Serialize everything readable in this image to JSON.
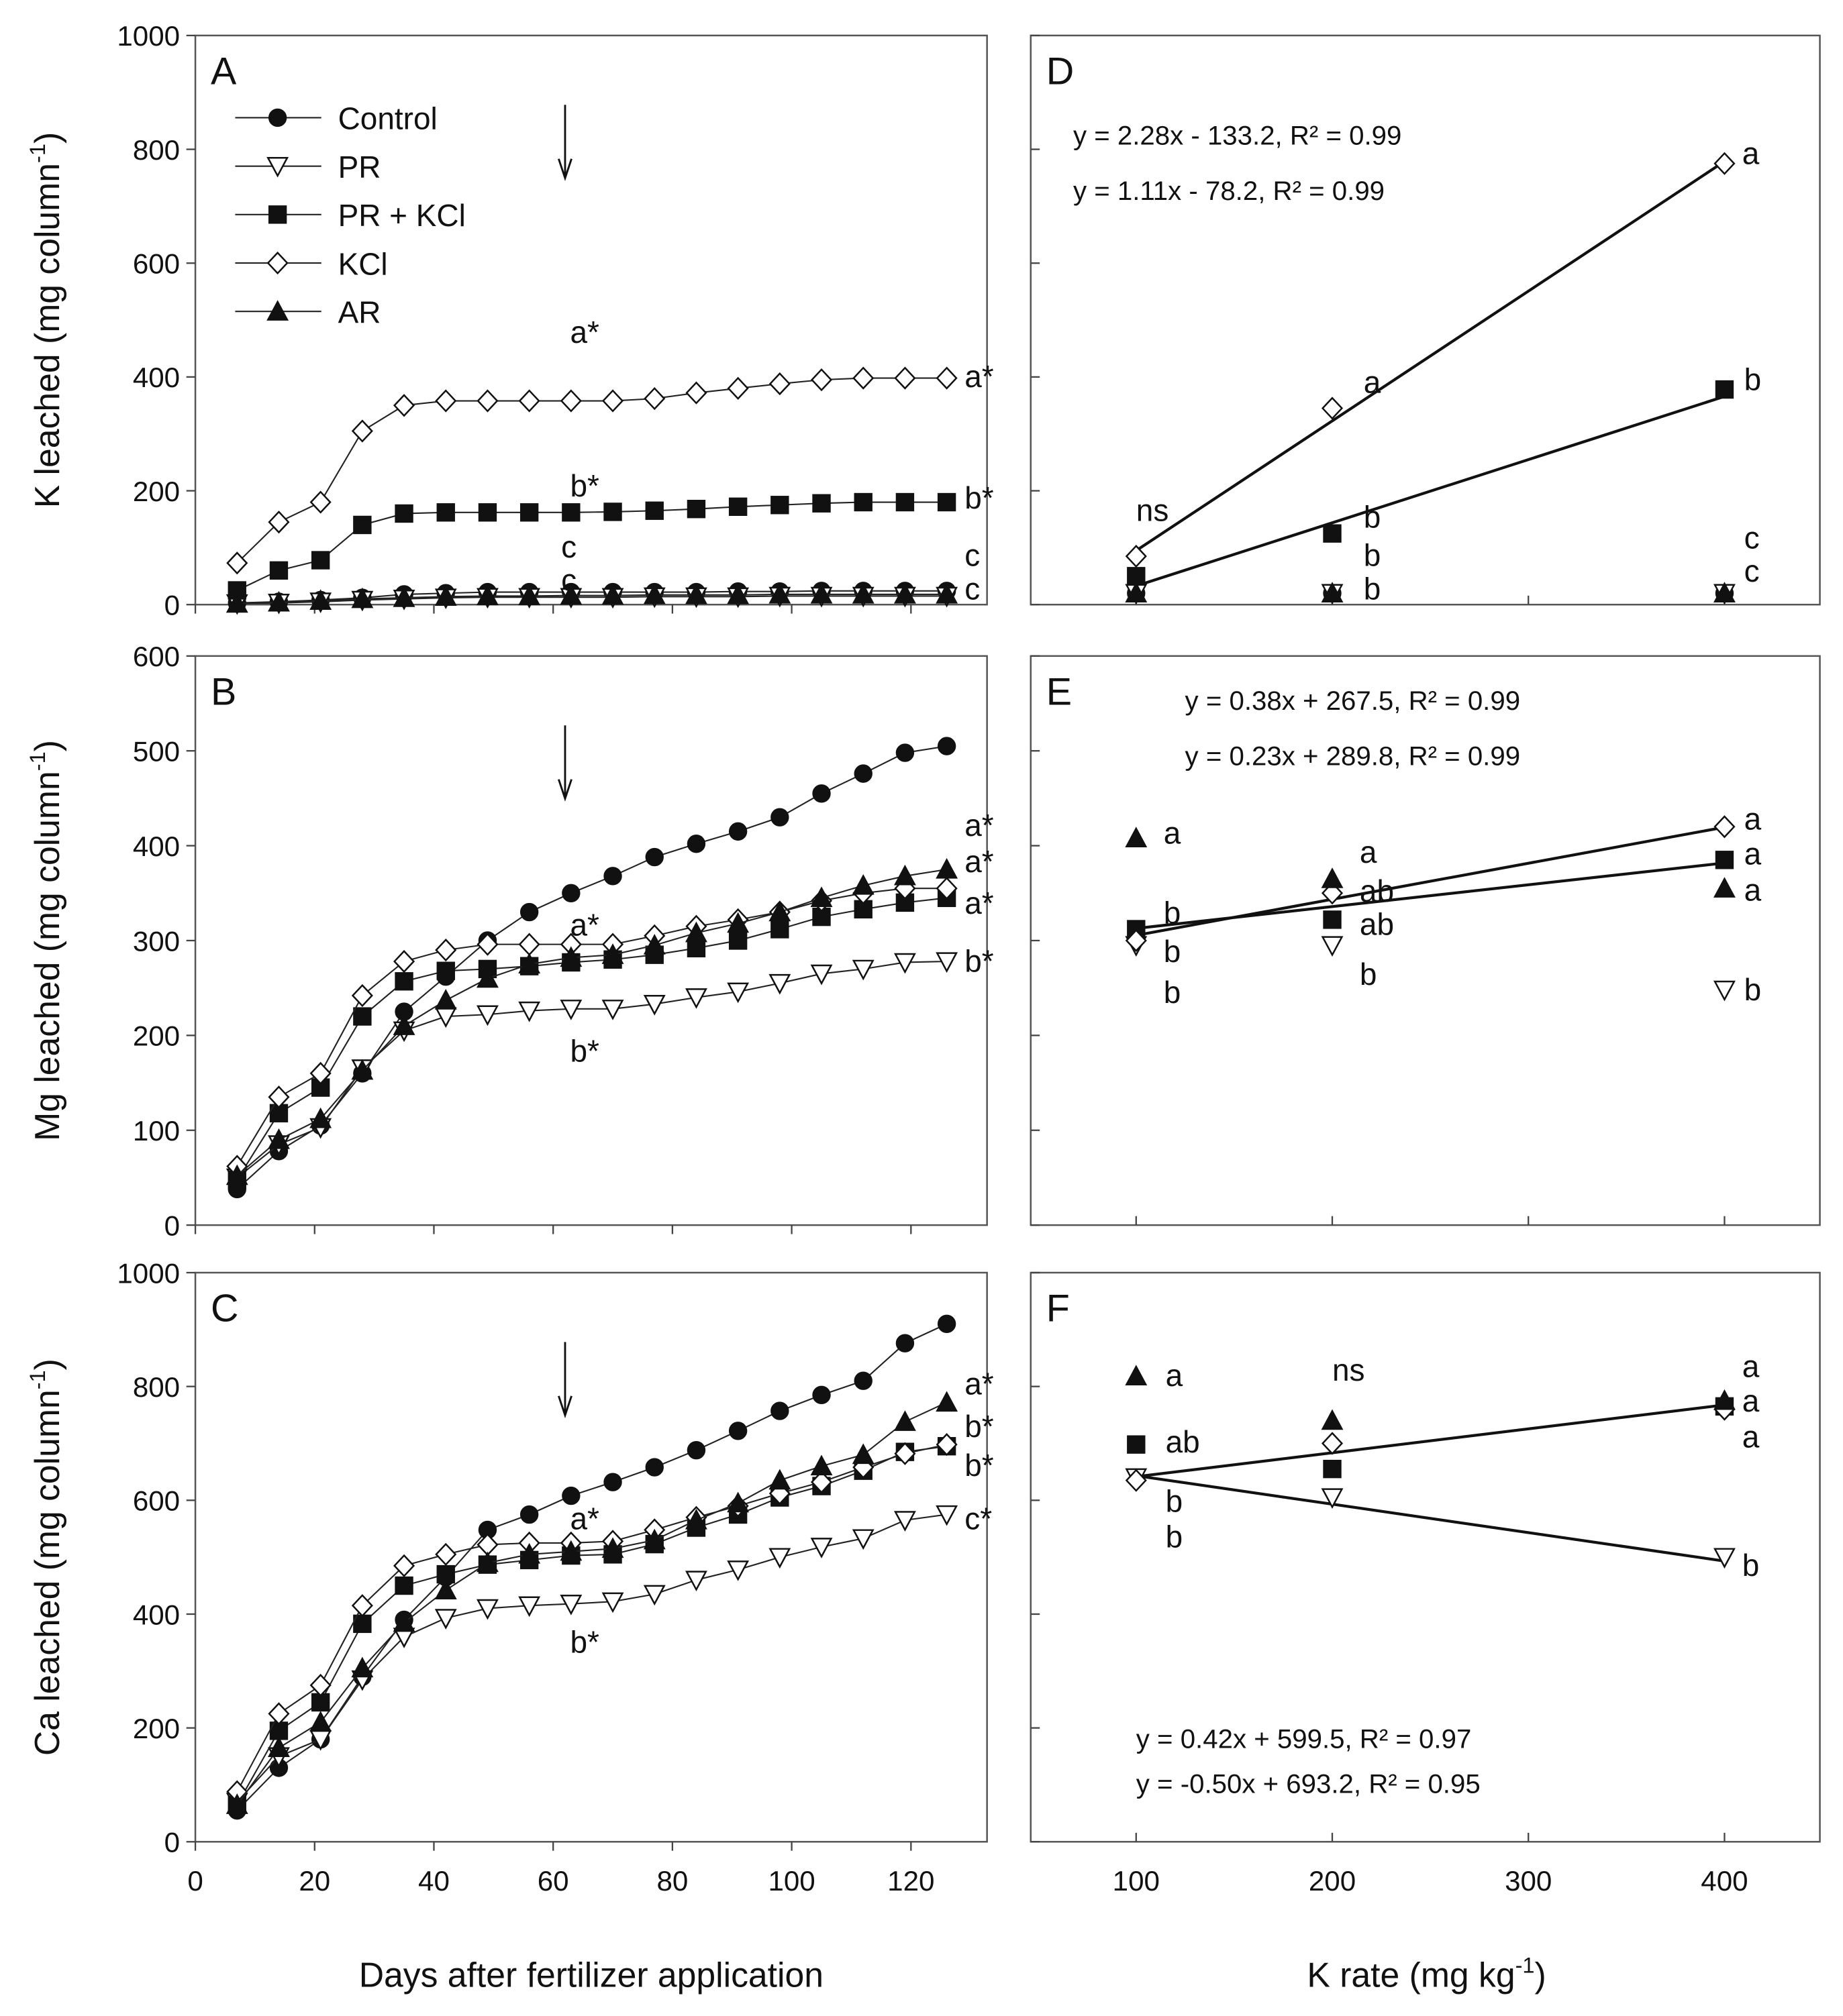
{
  "chart_data": [
    {
      "panel": "A",
      "type": "line",
      "ylabel": "K leached (mg column-1)",
      "ylim": [
        0,
        1000
      ],
      "yticks": [
        0,
        200,
        400,
        600,
        800,
        1000
      ],
      "xlim": [
        0,
        135
      ],
      "xticks": [
        0,
        20,
        40,
        60,
        80,
        100,
        120
      ],
      "x": [
        7,
        14,
        21,
        28,
        35,
        42,
        49,
        56,
        63,
        70,
        77,
        84,
        91,
        98,
        105,
        112,
        119,
        126
      ],
      "arrow_day": 62,
      "series": [
        {
          "name": "Control",
          "marker": "circle-filled",
          "values": [
            3,
            5,
            8,
            12,
            18,
            20,
            22,
            22,
            22,
            22,
            22,
            22,
            23,
            23,
            24,
            24,
            24,
            24
          ]
        },
        {
          "name": "PR",
          "marker": "triangle-down-open",
          "values": [
            2,
            3,
            5,
            8,
            10,
            12,
            13,
            13,
            13,
            13,
            14,
            14,
            14,
            15,
            15,
            15,
            15,
            15
          ]
        },
        {
          "name": "PR + KCl",
          "marker": "square-filled",
          "values": [
            25,
            60,
            78,
            140,
            160,
            162,
            162,
            162,
            162,
            163,
            165,
            168,
            172,
            175,
            178,
            180,
            180,
            180
          ]
        },
        {
          "name": "KCl",
          "marker": "diamond-open",
          "values": [
            73,
            145,
            180,
            305,
            350,
            358,
            358,
            358,
            358,
            358,
            362,
            372,
            380,
            388,
            395,
            398,
            398,
            398
          ]
        },
        {
          "name": "AR",
          "marker": "triangle-up-filled",
          "values": [
            2,
            4,
            7,
            10,
            12,
            14,
            15,
            15,
            16,
            16,
            17,
            17,
            17,
            18,
            18,
            18,
            18,
            18
          ]
        }
      ],
      "annotations": [
        {
          "text": "a*",
          "x": 65,
          "y": 478
        },
        {
          "text": "a*",
          "x": 129,
          "y": 400
        },
        {
          "text": "b*",
          "x": 65,
          "y": 208
        },
        {
          "text": "b*",
          "x": 129,
          "y": 187
        },
        {
          "text": "c",
          "x": 63.5,
          "y": 101
        },
        {
          "text": "c",
          "x": 63.5,
          "y": 61
        },
        {
          "text": "c",
          "x": 129,
          "y": 86
        },
        {
          "text": "c",
          "x": 129,
          "y": 29
        }
      ]
    },
    {
      "panel": "B",
      "type": "line",
      "ylabel": "Mg leached (mg column-1)",
      "ylim": [
        0,
        600
      ],
      "yticks": [
        0,
        100,
        200,
        300,
        400,
        500,
        600
      ],
      "xlim": [
        0,
        135
      ],
      "xticks": [
        0,
        20,
        40,
        60,
        80,
        100,
        120
      ],
      "x": [
        7,
        14,
        21,
        28,
        35,
        42,
        49,
        56,
        63,
        70,
        77,
        84,
        91,
        98,
        105,
        112,
        119,
        126
      ],
      "arrow_day": 62,
      "series": [
        {
          "name": "Control",
          "marker": "circle-filled",
          "values": [
            38,
            78,
            105,
            160,
            225,
            262,
            300,
            330,
            350,
            368,
            388,
            402,
            415,
            430,
            455,
            476,
            498,
            505
          ]
        },
        {
          "name": "PR",
          "marker": "triangle-down-open",
          "values": [
            50,
            85,
            103,
            165,
            205,
            220,
            222,
            226,
            228,
            228,
            233,
            240,
            246,
            255,
            265,
            270,
            277,
            278
          ]
        },
        {
          "name": "PR + KCl",
          "marker": "square-filled",
          "values": [
            48,
            118,
            145,
            220,
            257,
            268,
            270,
            273,
            277,
            280,
            285,
            292,
            300,
            312,
            325,
            333,
            340,
            345
          ]
        },
        {
          "name": "KCl",
          "marker": "diamond-open",
          "values": [
            62,
            135,
            160,
            242,
            278,
            290,
            296,
            296,
            296,
            296,
            305,
            315,
            322,
            330,
            342,
            350,
            355,
            355
          ]
        },
        {
          "name": "AR",
          "marker": "triangle-up-filled",
          "values": [
            52,
            90,
            112,
            163,
            210,
            237,
            260,
            275,
            282,
            285,
            295,
            308,
            318,
            330,
            345,
            358,
            368,
            375
          ]
        }
      ],
      "annotations": [
        {
          "text": "a*",
          "x": 65,
          "y": 316
        },
        {
          "text": "b*",
          "x": 65,
          "y": 183
        },
        {
          "text": "a*",
          "x": 129,
          "y": 421
        },
        {
          "text": "a*",
          "x": 129,
          "y": 383
        },
        {
          "text": "a*",
          "x": 129,
          "y": 339
        },
        {
          "text": "b*",
          "x": 129,
          "y": 278
        }
      ]
    },
    {
      "panel": "C",
      "type": "line",
      "xlabel": "Days after fertilizer application",
      "ylabel": "Ca leached (mg column-1)",
      "ylim": [
        0,
        1000
      ],
      "yticks": [
        0,
        200,
        400,
        600,
        800,
        1000
      ],
      "xlim": [
        0,
        135
      ],
      "xticks": [
        0,
        20,
        40,
        60,
        80,
        100,
        120
      ],
      "x": [
        7,
        14,
        21,
        28,
        35,
        42,
        49,
        56,
        63,
        70,
        77,
        84,
        91,
        98,
        105,
        112,
        119,
        126
      ],
      "arrow_day": 62,
      "series": [
        {
          "name": "Control",
          "marker": "circle-filled",
          "values": [
            55,
            130,
            180,
            290,
            390,
            465,
            548,
            575,
            608,
            632,
            658,
            688,
            722,
            757,
            785,
            810,
            876,
            910
          ]
        },
        {
          "name": "PR",
          "marker": "triangle-down-open",
          "values": [
            70,
            150,
            180,
            285,
            360,
            393,
            410,
            415,
            418,
            422,
            435,
            460,
            478,
            500,
            518,
            533,
            565,
            575
          ]
        },
        {
          "name": "PR + KCl",
          "marker": "square-filled",
          "values": [
            65,
            195,
            245,
            383,
            450,
            470,
            487,
            495,
            503,
            505,
            523,
            552,
            575,
            605,
            625,
            652,
            685,
            695
          ]
        },
        {
          "name": "KCl",
          "marker": "diamond-open",
          "values": [
            88,
            225,
            275,
            415,
            485,
            505,
            522,
            525,
            525,
            528,
            548,
            570,
            590,
            612,
            632,
            658,
            682,
            698
          ]
        },
        {
          "name": "AR",
          "marker": "triangle-up-filled",
          "values": [
            65,
            165,
            210,
            305,
            385,
            442,
            490,
            505,
            510,
            515,
            530,
            565,
            595,
            635,
            660,
            680,
            738,
            772
          ]
        }
      ],
      "annotations": [
        {
          "text": "a*",
          "x": 65,
          "y": 567
        },
        {
          "text": "b*",
          "x": 65,
          "y": 350
        },
        {
          "text": "a*",
          "x": 129,
          "y": 804
        },
        {
          "text": "b*",
          "x": 129,
          "y": 729
        },
        {
          "text": "b*",
          "x": 129,
          "y": 661
        },
        {
          "text": "c*",
          "x": 129,
          "y": 567
        }
      ]
    },
    {
      "panel": "D",
      "type": "scatter",
      "ylim": [
        0,
        1000
      ],
      "xlim": [
        50,
        452
      ],
      "x": [
        100,
        200,
        400
      ],
      "series": [
        {
          "name": "Control",
          "marker": "circle-filled",
          "values": [
            20,
            20,
            20
          ]
        },
        {
          "name": "PR",
          "marker": "triangle-down-open",
          "values": [
            20,
            20,
            20
          ]
        },
        {
          "name": "PR + KCl",
          "marker": "square-filled",
          "values": [
            50,
            125,
            378
          ]
        },
        {
          "name": "KCl",
          "marker": "diamond-open",
          "values": [
            85,
            345,
            775
          ]
        },
        {
          "name": "AR",
          "marker": "triangle-up-filled",
          "values": [
            20,
            20,
            20
          ]
        }
      ],
      "fits": [
        {
          "slope": 2.28,
          "intercept": -133.2,
          "label": "y = 2.28x - 133.2, R² = 0.99"
        },
        {
          "slope": 1.11,
          "intercept": -78.2,
          "label": "y = 1.11x - 78.2, R² = 0.99"
        }
      ],
      "annotations": [
        {
          "text": "ns",
          "x": 100,
          "y": 165
        },
        {
          "text": "a",
          "x": 409,
          "y": 792
        },
        {
          "text": "a",
          "x": 216,
          "y": 390
        },
        {
          "text": "b",
          "x": 410,
          "y": 395
        },
        {
          "text": "b",
          "x": 216,
          "y": 153
        },
        {
          "text": "b",
          "x": 216,
          "y": 86
        },
        {
          "text": "b",
          "x": 216,
          "y": 29
        },
        {
          "text": "c",
          "x": 410,
          "y": 117
        },
        {
          "text": "c",
          "x": 410,
          "y": 68
        }
      ]
    },
    {
      "panel": "E",
      "type": "scatter",
      "ylim": [
        0,
        600
      ],
      "xlim": [
        50,
        452
      ],
      "x": [
        100,
        200,
        400
      ],
      "series": [
        {
          "name": "PR",
          "marker": "triangle-down-open",
          "values": [
            295,
            295,
            248
          ]
        },
        {
          "name": "PR + KCl",
          "marker": "square-filled",
          "values": [
            312,
            322,
            385
          ]
        },
        {
          "name": "KCl",
          "marker": "diamond-open",
          "values": [
            300,
            350,
            420
          ]
        },
        {
          "name": "AR",
          "marker": "triangle-up-filled",
          "values": [
            408,
            365,
            355
          ]
        }
      ],
      "fits": [
        {
          "slope": 0.38,
          "intercept": 267.5,
          "label": "y = 0.38x + 267.5, R² = 0.99"
        },
        {
          "slope": 0.23,
          "intercept": 289.8,
          "label": "y = 0.23x + 289.8, R² = 0.99"
        }
      ],
      "annotations": [
        {
          "text": "a",
          "x": 114,
          "y": 413
        },
        {
          "text": "b",
          "x": 114,
          "y": 329
        },
        {
          "text": "b",
          "x": 114,
          "y": 288
        },
        {
          "text": "b",
          "x": 114,
          "y": 245
        },
        {
          "text": "a",
          "x": 214,
          "y": 393
        },
        {
          "text": "ab",
          "x": 214,
          "y": 352
        },
        {
          "text": "ab",
          "x": 214,
          "y": 318
        },
        {
          "text": "b",
          "x": 214,
          "y": 264
        },
        {
          "text": "a",
          "x": 410,
          "y": 428
        },
        {
          "text": "a",
          "x": 410,
          "y": 391
        },
        {
          "text": "a",
          "x": 410,
          "y": 353
        },
        {
          "text": "b",
          "x": 410,
          "y": 248
        }
      ]
    },
    {
      "panel": "F",
      "type": "scatter",
      "xlabel": "K rate (mg kg-1)",
      "ylim": [
        0,
        1000
      ],
      "xlim": [
        50,
        452
      ],
      "xticks": [
        100,
        200,
        300,
        400
      ],
      "x": [
        100,
        200,
        400
      ],
      "series": [
        {
          "name": "PR",
          "marker": "triangle-down-open",
          "values": [
            640,
            605,
            500
          ]
        },
        {
          "name": "PR + KCl",
          "marker": "square-filled",
          "values": [
            698,
            655,
            765
          ]
        },
        {
          "name": "KCl",
          "marker": "diamond-open",
          "values": [
            635,
            700,
            760
          ]
        },
        {
          "name": "AR",
          "marker": "triangle-up-filled",
          "values": [
            818,
            740,
            775
          ]
        }
      ],
      "fits": [
        {
          "slope": 0.42,
          "intercept": 599.5,
          "label": "y = 0.42x + 599.5, R² = 0.97"
        },
        {
          "slope": -0.5,
          "intercept": 693.2,
          "label": "y = -0.50x + 693.2, R² = 0.95"
        }
      ],
      "annotations": [
        {
          "text": "a",
          "x": 115,
          "y": 819
        },
        {
          "text": "ab",
          "x": 115,
          "y": 702
        },
        {
          "text": "b",
          "x": 115,
          "y": 598
        },
        {
          "text": "b",
          "x": 115,
          "y": 535
        },
        {
          "text": "ns",
          "x": 200,
          "y": 828
        },
        {
          "text": "a",
          "x": 409,
          "y": 835
        },
        {
          "text": "a",
          "x": 409,
          "y": 774
        },
        {
          "text": "a",
          "x": 409,
          "y": 711
        },
        {
          "text": "b",
          "x": 409,
          "y": 485
        }
      ]
    }
  ],
  "labels": {
    "x_left": "Days after fertilizer application",
    "x_right": "K rate (mg kg",
    "x_right_sup": "-1",
    "x_right_end": ")",
    "ylabel_A": "K leached (mg column",
    "ylabel_B": "Mg leached (mg column",
    "ylabel_C": "Ca leached (mg column",
    "ylabel_sup": "-1",
    "ylabel_end": ")"
  }
}
